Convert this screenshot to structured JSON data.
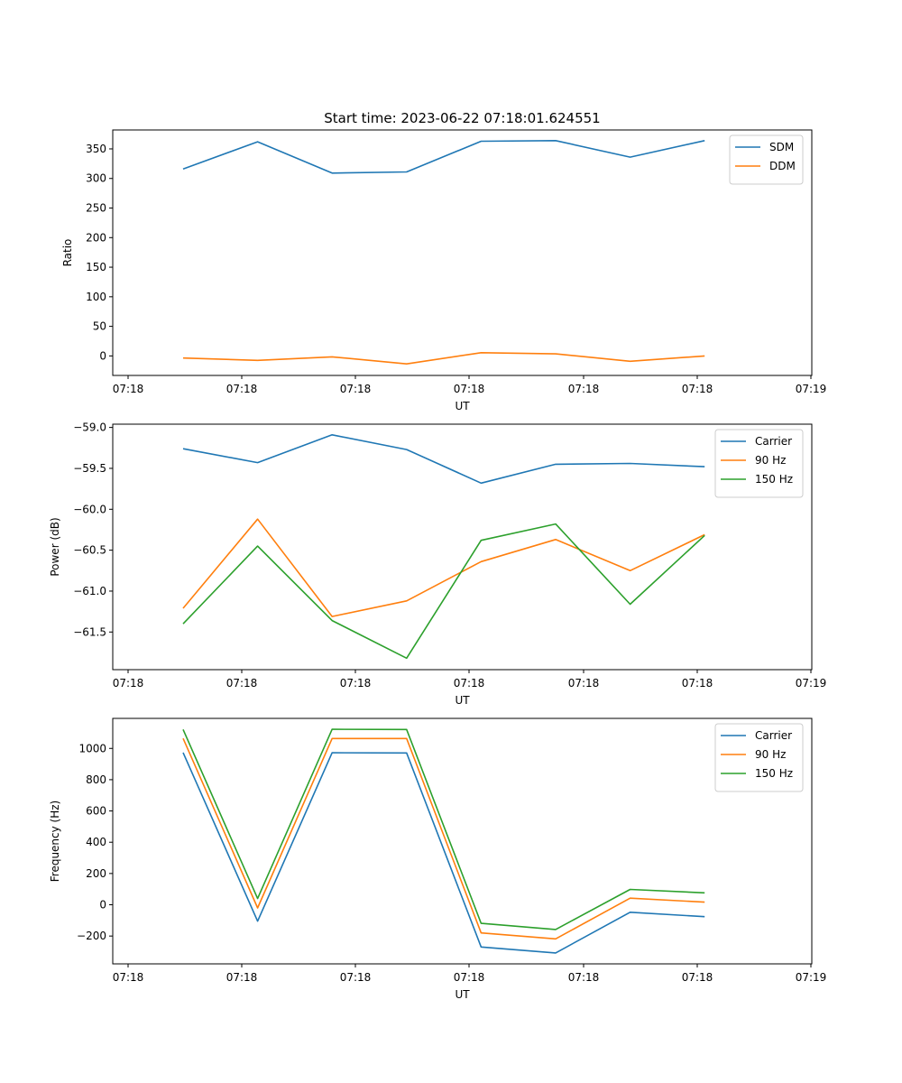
{
  "figure_title": "Start time: 2023-06-22 07:18:01.624551",
  "colors": {
    "blue": "#1f77b4",
    "orange": "#ff7f0e",
    "green": "#2ca02c"
  },
  "chart_data": [
    {
      "type": "line",
      "xlabel": "UT",
      "ylabel": "Ratio",
      "x_tick_labels": [
        "07:18",
        "07:18",
        "07:18",
        "07:18",
        "07:18",
        "07:18",
        "07:19"
      ],
      "y_ticks": [
        0,
        50,
        100,
        150,
        200,
        250,
        300,
        350
      ],
      "y_tick_labels": [
        "0",
        "50",
        "100",
        "150",
        "200",
        "250",
        "300",
        "350"
      ],
      "ylim": [
        -33,
        382
      ],
      "legend_position": "upper right",
      "grid": false,
      "series": [
        {
          "name": "SDM",
          "color": "#1f77b4",
          "values": [
            316,
            362,
            309,
            311,
            363,
            364,
            336,
            364
          ]
        },
        {
          "name": "DDM",
          "color": "#ff7f0e",
          "values": [
            -3.5,
            -7.5,
            -1.5,
            -13.5,
            5.5,
            3.5,
            -9,
            0
          ]
        }
      ]
    },
    {
      "type": "line",
      "xlabel": "UT",
      "ylabel": "Power (dB)",
      "x_tick_labels": [
        "07:18",
        "07:18",
        "07:18",
        "07:18",
        "07:18",
        "07:18",
        "07:19"
      ],
      "y_ticks": [
        -59.0,
        -59.5,
        -60.0,
        -60.5,
        -61.0,
        -61.5
      ],
      "y_tick_labels": [
        "−59.0",
        "−59.5",
        "−60.0",
        "−60.5",
        "−61.0",
        "−61.5"
      ],
      "ylim": [
        -61.96,
        -58.96
      ],
      "legend_position": "upper right",
      "grid": false,
      "series": [
        {
          "name": "Carrier",
          "color": "#1f77b4",
          "values": [
            -59.26,
            -59.43,
            -59.09,
            -59.27,
            -59.68,
            -59.45,
            -59.44,
            -59.48
          ]
        },
        {
          "name": "90 Hz",
          "color": "#ff7f0e",
          "values": [
            -61.21,
            -60.12,
            -61.31,
            -61.12,
            -60.64,
            -60.37,
            -60.75,
            -60.31
          ]
        },
        {
          "name": "150 Hz",
          "color": "#2ca02c",
          "values": [
            -61.4,
            -60.45,
            -61.36,
            -61.82,
            -60.38,
            -60.18,
            -61.16,
            -60.32
          ]
        }
      ]
    },
    {
      "type": "line",
      "xlabel": "UT",
      "ylabel": "Frequency (Hz)",
      "x_tick_labels": [
        "07:18",
        "07:18",
        "07:18",
        "07:18",
        "07:18",
        "07:18",
        "07:19"
      ],
      "y_ticks": [
        -200,
        0,
        200,
        400,
        600,
        800,
        1000
      ],
      "y_tick_labels": [
        "−200",
        "0",
        "200",
        "400",
        "600",
        "800",
        "1000"
      ],
      "ylim": [
        -378,
        1192
      ],
      "legend_position": "upper right",
      "grid": false,
      "series": [
        {
          "name": "Carrier",
          "color": "#1f77b4",
          "values": [
            973,
            -105,
            972,
            971,
            -270,
            -308,
            -48,
            -76
          ]
        },
        {
          "name": "90 Hz",
          "color": "#ff7f0e",
          "values": [
            1064,
            -20,
            1063,
            1063,
            -180,
            -218,
            42,
            17
          ]
        },
        {
          "name": "150 Hz",
          "color": "#2ca02c",
          "values": [
            1121,
            40,
            1122,
            1121,
            -119,
            -158,
            98,
            76
          ]
        }
      ]
    }
  ]
}
